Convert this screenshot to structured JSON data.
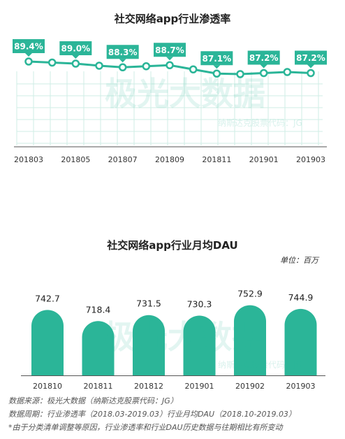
{
  "chart_data": [
    {
      "type": "line",
      "title": "社交网络app行业渗透率",
      "x": [
        "201803",
        "201804",
        "201805",
        "201806",
        "201807",
        "201808",
        "201809",
        "201810",
        "201811",
        "201812",
        "201901",
        "201902",
        "201903"
      ],
      "tick_labels": [
        "201803",
        "201805",
        "201807",
        "201809",
        "201811",
        "201901",
        "201903"
      ],
      "values": [
        89.4,
        89.2,
        89.0,
        88.6,
        88.3,
        88.5,
        88.7,
        87.9,
        87.1,
        87.0,
        87.2,
        87.4,
        87.2
      ],
      "value_labels": [
        {
          "x": "201803",
          "label": "89.4%"
        },
        {
          "x": "201805",
          "label": "89.0%"
        },
        {
          "x": "201807",
          "label": "88.3%"
        },
        {
          "x": "201809",
          "label": "88.7%"
        },
        {
          "x": "201811",
          "label": "87.1%"
        },
        {
          "x": "201901",
          "label": "87.2%"
        },
        {
          "x": "201903",
          "label": "87.2%"
        }
      ],
      "grid": true,
      "color": "#2bb598"
    },
    {
      "type": "bar",
      "title": "社交网络app行业月均DAU",
      "unit_label": "单位：百万",
      "categories": [
        "201810",
        "201811",
        "201812",
        "201901",
        "201902",
        "201903"
      ],
      "values": [
        742.7,
        718.4,
        731.5,
        730.3,
        752.9,
        744.9
      ],
      "color": "#2bb598"
    }
  ],
  "watermark": {
    "main": "极光大数据",
    "sub": "纳斯达克股票代码：JG"
  },
  "footnotes": {
    "source": "数据来源：极光大数据（纳斯达克股票代码：JG）",
    "period": "数据周期：行业渗透率（2018.03-2019.03）行业月均DAU（2018.10-2019.03）",
    "note": "*由于分类清单调整等原因，行业渗透率和行业DAU历史数据与往期相比有所变动"
  },
  "colors": {
    "accent": "#2bb598",
    "accent_dark": "#1a9a7e",
    "grid": "#cfeee5"
  }
}
